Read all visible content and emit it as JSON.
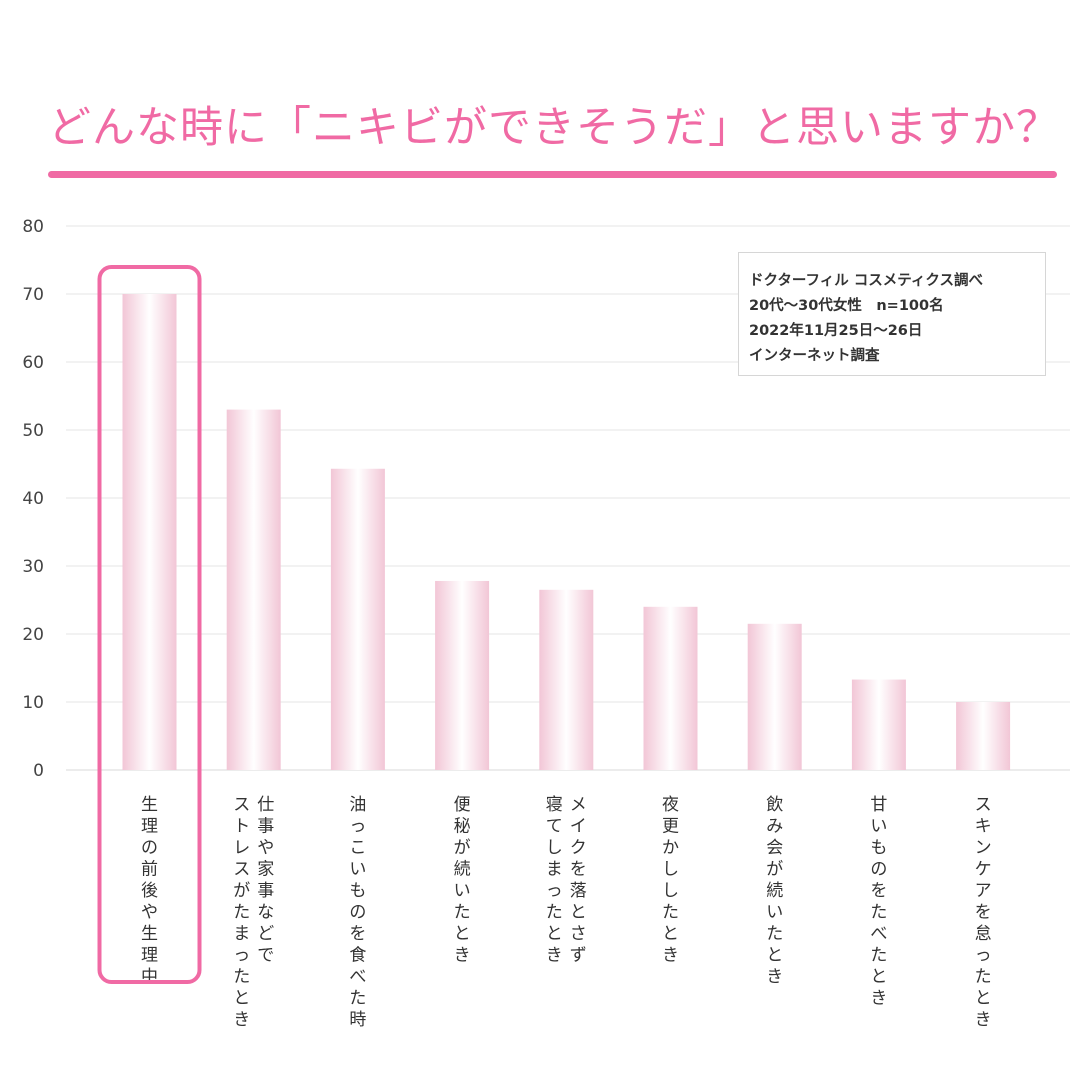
{
  "header": {
    "title": "どんな時に「ニキビができそうだ」と思いますか？"
  },
  "note": {
    "lines": [
      "ドクターフィル コスメティクス調べ",
      "20代〜30代女性　n=100名",
      "2022年11月25日〜26日",
      "インターネット調査"
    ]
  },
  "colors": {
    "accent": "#f06aa4",
    "bar_edge": "#f2c6d6",
    "bar_center": "#ffffff",
    "grid": "#e6e6e6"
  },
  "chart_data": {
    "type": "bar",
    "title": "どんな時に「ニキビができそうだ」と思いますか？",
    "categories": [
      "生理の前後や生理中",
      "仕事や家事などでストレスがたまったとき",
      "油っこいものを食べた時",
      "便秘が続いたとき",
      "メイクを落とさず寝てしまったとき",
      "夜更かししたとき",
      "飲み会が続いたとき",
      "甘いものをたべたとき",
      "スキンケアを怠ったとき"
    ],
    "category_lines": [
      [
        "生理の前後や生理中"
      ],
      [
        "仕事や家事などで",
        "ストレスがたまったとき"
      ],
      [
        "油っこいものを食べた時"
      ],
      [
        "便秘が続いたとき"
      ],
      [
        "メイクを落とさず",
        "寝てしまったとき"
      ],
      [
        "夜更かししたとき"
      ],
      [
        "飲み会が続いたとき"
      ],
      [
        "甘いものをたべたとき"
      ],
      [
        "スキンケアを怠ったとき"
      ]
    ],
    "values": [
      70,
      53,
      44.3,
      27.8,
      26.5,
      24,
      21.5,
      13.3,
      10
    ],
    "ylim": [
      0,
      80
    ],
    "yticks": [
      0,
      10,
      20,
      30,
      40,
      50,
      60,
      70,
      80
    ],
    "grid": true,
    "highlight_index": 0,
    "xlabel": "",
    "ylabel": ""
  }
}
